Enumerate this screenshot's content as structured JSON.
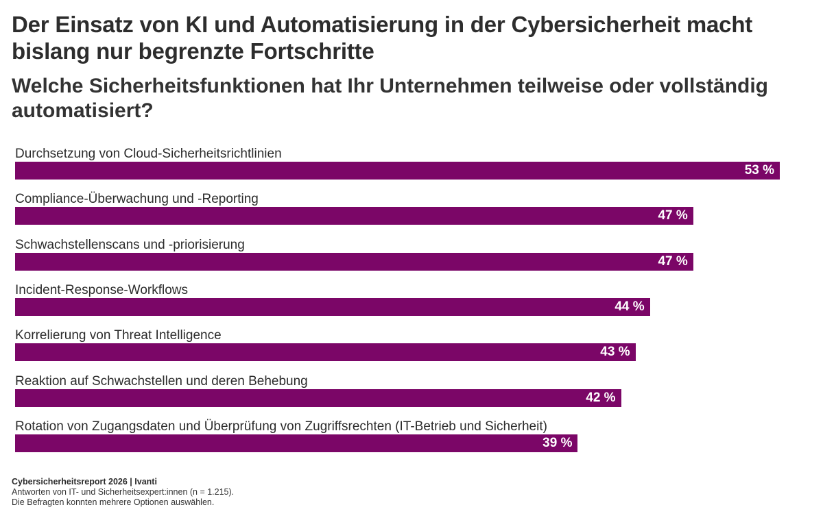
{
  "header": {
    "title": "Der Einsatz von KI und Automatisierung in der Cybersicherheit macht bislang nur begrenzte Fortschritte",
    "subtitle": "Welche Sicherheitsfunktionen hat Ihr Unternehmen teilweise oder vollständig automatisiert?"
  },
  "colors": {
    "bar": "#7b0667",
    "value_text": "#ffffff"
  },
  "chart_data": {
    "type": "bar",
    "orientation": "horizontal",
    "title": "Der Einsatz von KI und Automatisierung in der Cybersicherheit macht bislang nur begrenzte Fortschritte",
    "subtitle": "Welche Sicherheitsfunktionen hat Ihr Unternehmen teilweise oder vollständig automatisiert?",
    "xlabel": "",
    "ylabel": "",
    "unit": "%",
    "xlim": [
      0,
      53
    ],
    "grid": false,
    "legend": "none",
    "categories": [
      "Durchsetzung von Cloud-Sicherheitsrichtlinien",
      "Compliance-Überwachung und -Reporting",
      "Schwachstellenscans und -priorisierung",
      "Incident-Response-Workflows",
      "Korrelierung von Threat Intelligence",
      "Reaktion auf Schwachstellen und deren Behebung",
      "Rotation von Zugangsdaten und Überprüfung von Zugriffsrechten (IT-Betrieb und Sicherheit)"
    ],
    "values": [
      53,
      47,
      47,
      44,
      43,
      42,
      39
    ],
    "value_labels": [
      "53 %",
      "47 %",
      "47 %",
      "44 %",
      "43 %",
      "42 %",
      "39 %"
    ]
  },
  "footer": {
    "source": "Cybersicherheitsreport 2026 | Ivanti",
    "note1": "Antworten von IT- und Sicherheitsexpert:innen (n = 1.215).",
    "note2": "Die Befragten konnten mehrere Optionen auswählen."
  }
}
